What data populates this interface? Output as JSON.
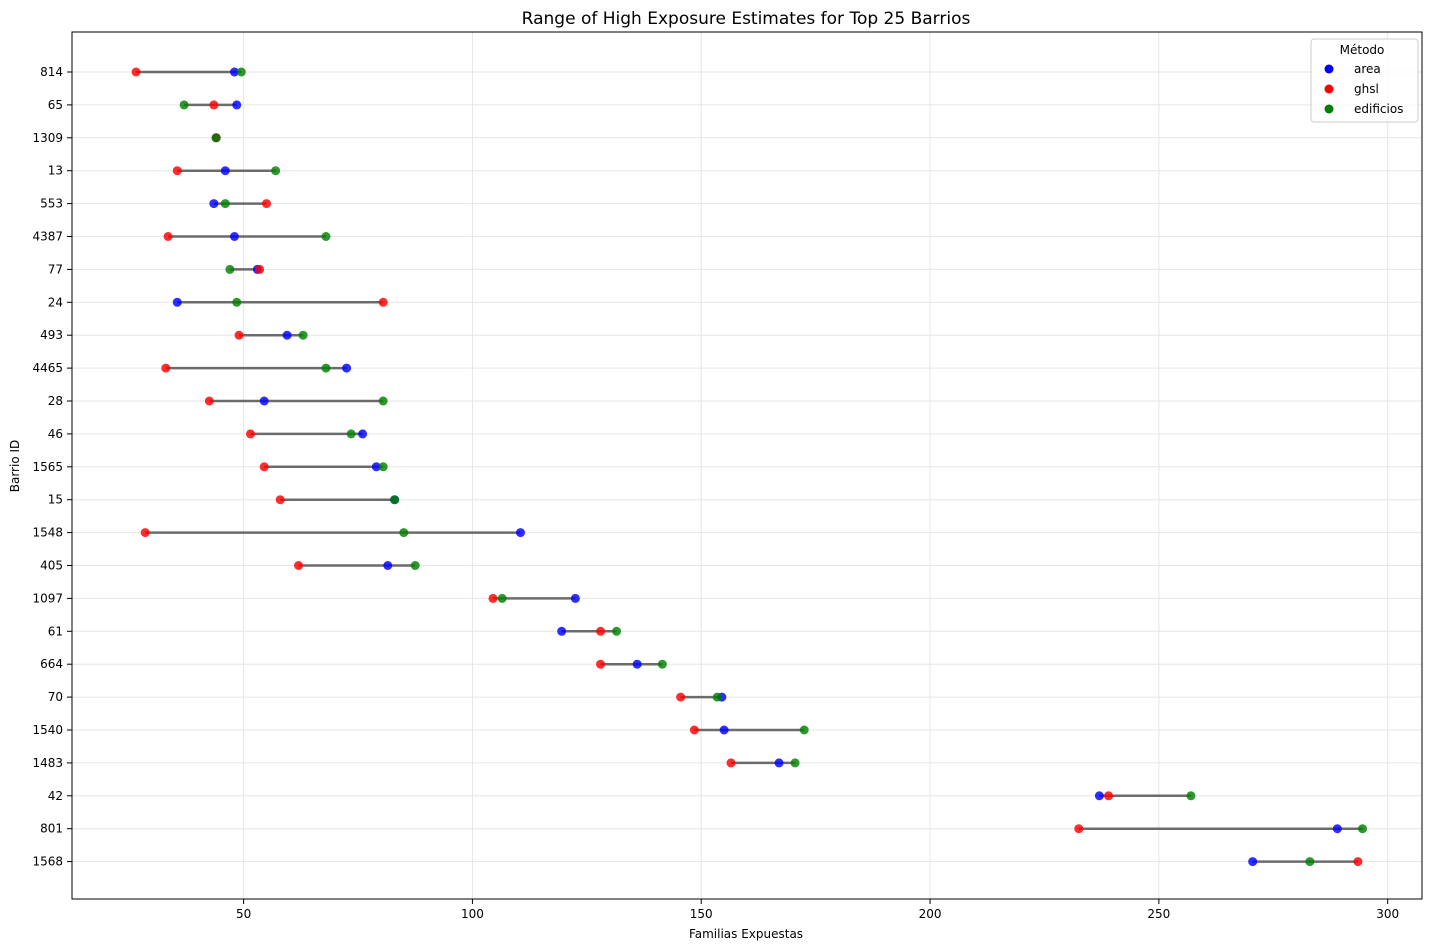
{
  "chart_data": {
    "type": "dumbbell",
    "title": "Range of High Exposure Estimates for Top 25 Barrios",
    "xlabel": "Familias Expuestas",
    "ylabel": "Barrio ID",
    "xlim": [
      12.5,
      307.5
    ],
    "xticks": [
      50,
      100,
      150,
      200,
      250,
      300
    ],
    "grid": true,
    "legend": {
      "title": "Método",
      "position": "top-right"
    },
    "categories": [
      "814",
      "65",
      "1309",
      "13",
      "553",
      "4387",
      "77",
      "24",
      "493",
      "4465",
      "28",
      "46",
      "1565",
      "15",
      "1548",
      "405",
      "1097",
      "61",
      "664",
      "70",
      "1540",
      "1483",
      "42",
      "801",
      "1568"
    ],
    "series": [
      {
        "name": "area",
        "color": "#0000ff",
        "values": [
          48,
          48.5,
          44,
          46,
          43.5,
          48,
          53,
          35.5,
          59.5,
          72.5,
          54.5,
          76,
          79,
          83,
          110.5,
          81.5,
          122.5,
          119.5,
          136,
          154.5,
          155,
          167,
          237,
          289,
          270.5
        ]
      },
      {
        "name": "ghsl",
        "color": "#ff0000",
        "values": [
          26.5,
          43.5,
          44,
          35.5,
          55,
          33.5,
          53.5,
          80.5,
          49,
          33,
          42.5,
          51.5,
          54.5,
          58,
          28.5,
          62,
          104.5,
          128,
          128,
          145.5,
          148.5,
          156.5,
          239,
          232.5,
          293.5
        ]
      },
      {
        "name": "edificios",
        "color": "#008000",
        "values": [
          49.5,
          37,
          44,
          57,
          46,
          68,
          47,
          48.5,
          63,
          68,
          80.5,
          73.5,
          80.5,
          83,
          85,
          87.5,
          106.5,
          131.5,
          141.5,
          153.5,
          172.5,
          170.5,
          257,
          294.5,
          283
        ]
      }
    ]
  }
}
